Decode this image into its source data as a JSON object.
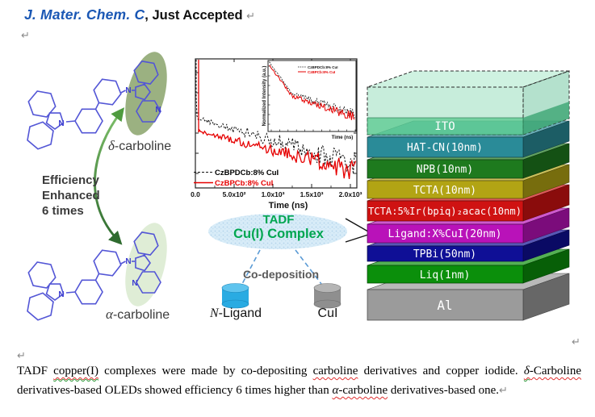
{
  "header": {
    "journal": "J. Mater. Chem. C",
    "suffix": ", Just Accepted"
  },
  "marks": {
    "pilcrow": "↵"
  },
  "molecules": {
    "atom_label": "N",
    "delta_label": {
      "greek": "δ",
      "rest": "-carboline"
    },
    "alpha_label": {
      "greek": "α",
      "rest": "-carboline"
    },
    "efficiency_lines": [
      "Efficiency",
      "Enhanced",
      "6 times"
    ],
    "bond_color": "#5356d6",
    "delta_highlight": "#93aa76",
    "alpha_highlight": "#dcebd2",
    "arrow_color_light": "#7ec06a",
    "arrow_color_dark": "#2f6b2f"
  },
  "plot": {
    "xticks": [
      "0.0",
      "5.0x10²",
      "1.0x10³",
      "1.5x10³",
      "2.0x10³"
    ],
    "xlabel": "Time (ns)",
    "legend": [
      {
        "label": "CzBPDCb:8% CuI",
        "color": "#000000",
        "dash": true
      },
      {
        "label": "CzBPCb:8% CuI",
        "color": "#e60000",
        "dash": false
      }
    ],
    "inset": {
      "ylabel": "Normalized Intensity (a.u.)",
      "xlabel": "Time (ns)",
      "legend": [
        "CzBPDCb:8% CuI",
        "CzBPCb:8% CuI"
      ]
    }
  },
  "chart_data": {
    "type": "line",
    "title": "Transient PL decay of carboline:CuI co-deposited films",
    "xlabel": "Time (ns)",
    "ylabel": "Normalized Intensity (a.u.)",
    "xlim": [
      0,
      2000
    ],
    "yscale": "log",
    "legend_position": "lower-left",
    "series": [
      {
        "name": "CzBPDCb:8% CuI",
        "color": "#000000",
        "style": "dashed",
        "points": [
          [
            0,
            1.0
          ],
          [
            20,
            0.25
          ],
          [
            100,
            0.17
          ],
          [
            500,
            0.12
          ],
          [
            1000,
            0.085
          ],
          [
            1500,
            0.062
          ],
          [
            2000,
            0.046
          ]
        ]
      },
      {
        "name": "CzBPCb:8% CuI",
        "color": "#e60000",
        "style": "solid",
        "points": [
          [
            0,
            1.0
          ],
          [
            20,
            0.18
          ],
          [
            100,
            0.12
          ],
          [
            500,
            0.085
          ],
          [
            1000,
            0.06
          ],
          [
            1500,
            0.046
          ],
          [
            2000,
            0.036
          ]
        ]
      }
    ],
    "inset": {
      "same_series": true,
      "xlim": [
        0,
        100
      ],
      "yscale": "log"
    }
  },
  "scheme": {
    "tadf_line1": "TADF",
    "tadf_line2": "Cu(I) Complex",
    "codeposition": "Co-deposition",
    "ligand_label": {
      "italic": "N",
      "rest": "-Ligand"
    },
    "cui_label": "CuI",
    "text_green": "#00a651",
    "ellipse_fill": "#d8ecf8",
    "ligand_cyl_color": "#29abe2",
    "cui_cyl_color": "#8f8f8f",
    "dash_color": "#5b9bd5"
  },
  "device": {
    "layers": [
      {
        "name": "glass-ito",
        "label": "ITO",
        "color": "#56c28a"
      },
      {
        "name": "hat-cn",
        "label": "HAT-CN(10nm)",
        "color": "#2a8b98"
      },
      {
        "name": "npb",
        "label": "NPB(10nm)",
        "color": "#1e7a1e"
      },
      {
        "name": "tcta",
        "label": "TCTA(10nm)",
        "color": "#b2a414"
      },
      {
        "name": "emitting-layer",
        "label": "TCTA:5%Ir(bpiq)₂acac(10nm)",
        "color": "#cf1212"
      },
      {
        "name": "ligand-cui",
        "label": "Ligand:X%CuI(20nm)",
        "color": "#b912b9"
      },
      {
        "name": "tpbi",
        "label": "TPBi(50nm)",
        "color": "#0f0f96"
      },
      {
        "name": "liq",
        "label": "Liq(1nm)",
        "color": "#0b8f0b"
      },
      {
        "name": "al",
        "label": "Al",
        "color": "#9b9b9b"
      }
    ]
  },
  "caption": {
    "segments": [
      {
        "text": "TADF "
      },
      {
        "text": "copper(I)",
        "w": "b"
      },
      {
        "text": " complexes were made by co-depositing "
      },
      {
        "text": "carboline",
        "w": "r"
      },
      {
        "text": " derivatives and copper iodide. "
      },
      {
        "text": "δ",
        "i": true,
        "w": "b"
      },
      {
        "text": "-Carboline",
        "w": "r"
      },
      {
        "text": " derivatives-based OLEDs showed efficiency 6 times higher than "
      },
      {
        "text": "α",
        "i": true,
        "w": "r"
      },
      {
        "text": "-carboline",
        "w": "r"
      },
      {
        "text": " derivatives-based one."
      },
      {
        "text": "↵",
        "p": true
      }
    ]
  }
}
